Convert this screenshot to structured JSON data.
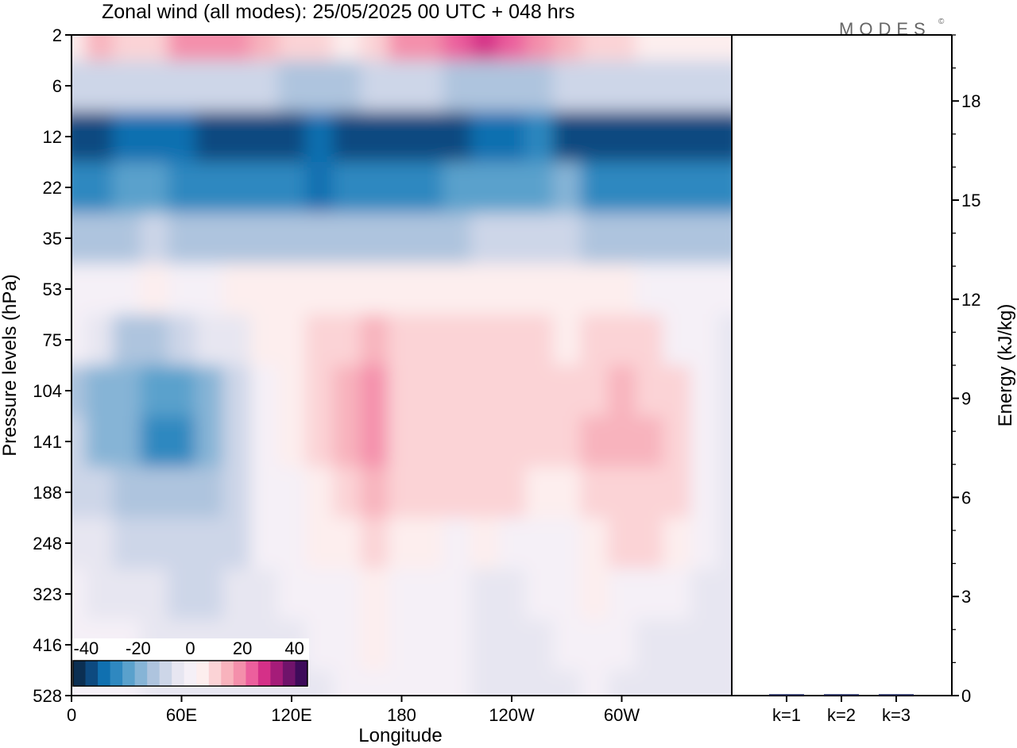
{
  "title": "Zonal wind (all modes):  25/05/2025  00 UTC  + 048 hrs",
  "logo": "MODES",
  "logo_mark": "©",
  "chart_data": [
    {
      "type": "heatmap",
      "title": "Zonal wind (all modes):  25/05/2025  00 UTC  + 048 hrs",
      "xlabel": "Longitude",
      "ylabel": "Pressure levels (hPa)",
      "x_tick_labels": [
        "0",
        "60E",
        "120E",
        "180",
        "120W",
        "60W"
      ],
      "x_tick_degrees": [
        0,
        60,
        120,
        180,
        240,
        300
      ],
      "xlim": [
        0,
        360
      ],
      "y_tick_labels": [
        "2",
        "6",
        "12",
        "22",
        "35",
        "53",
        "75",
        "104",
        "141",
        "188",
        "248",
        "323",
        "416",
        "528"
      ],
      "y_axis_note": "pressure levels spaced evenly, 2 hPa at top",
      "colorbar": {
        "tick_labels": [
          "-40",
          "-20",
          "0",
          "20",
          "40"
        ],
        "range": [
          -45,
          45
        ],
        "step": 5,
        "colors": [
          "#0b2f52",
          "#0d4a80",
          "#1070b0",
          "#2f88c0",
          "#5aa1cc",
          "#86b4d6",
          "#aec4de",
          "#cdd6e8",
          "#e7e6f1",
          "#f5f0f7",
          "#fdeeee",
          "#fbd3d6",
          "#f8b3bd",
          "#f48fab",
          "#ec5f9d",
          "#d53088",
          "#a51c79",
          "#70136b",
          "#3e0b5a"
        ]
      },
      "z_grid_note": "zonal wind in m/s, rows follow the pressure levels from 2 hPa down to 528 hPa, columns every 15 degrees from 0 to 360",
      "z": [
        [
          8,
          16,
          14,
          12,
          22,
          20,
          22,
          18,
          12,
          12,
          8,
          10,
          20,
          24,
          26,
          30,
          28,
          24,
          18,
          12,
          10,
          8,
          8,
          6,
          6
        ],
        [
          -6,
          -10,
          -10,
          -10,
          -8,
          -10,
          -10,
          -10,
          -12,
          -12,
          -12,
          -10,
          -10,
          -10,
          -12,
          -12,
          -12,
          -12,
          -10,
          -10,
          -8,
          -8,
          -8,
          -8,
          -6
        ],
        [
          -38,
          -36,
          -33,
          -31,
          -32,
          -37,
          -39,
          -38,
          -36,
          -35,
          -37,
          -39,
          -39,
          -38,
          -36,
          -35,
          -33,
          -30,
          -36,
          -38,
          -38,
          -37,
          -36,
          -37,
          -38
        ],
        [
          -28,
          -27,
          -24,
          -24,
          -26,
          -29,
          -30,
          -27,
          -30,
          -31,
          -30,
          -28,
          -27,
          -26,
          -25,
          -24,
          -25,
          -22,
          -20,
          -26,
          -28,
          -27,
          -26,
          -27,
          -28
        ],
        [
          -12,
          -13,
          -11,
          -10,
          -11,
          -12,
          -13,
          -14,
          -14,
          -13,
          -12,
          -12,
          -12,
          -11,
          -11,
          -10,
          -10,
          -9,
          -10,
          -12,
          -12,
          -11,
          -11,
          -11,
          -12
        ],
        [
          2,
          3,
          4,
          6,
          4,
          2,
          6,
          8,
          7,
          8,
          8,
          8,
          7,
          8,
          7,
          8,
          9,
          8,
          7,
          7,
          6,
          4,
          3,
          2,
          1
        ],
        [
          1,
          -4,
          -12,
          -12,
          -6,
          -4,
          -1,
          6,
          8,
          12,
          14,
          16,
          13,
          12,
          10,
          12,
          11,
          10,
          8,
          12,
          14,
          10,
          4,
          0,
          -2
        ],
        [
          -12,
          -18,
          -20,
          -25,
          -24,
          -20,
          -8,
          2,
          8,
          12,
          18,
          24,
          14,
          12,
          10,
          12,
          14,
          14,
          10,
          14,
          16,
          14,
          10,
          2,
          -4
        ],
        [
          -10,
          -16,
          -20,
          -30,
          -28,
          -20,
          -8,
          2,
          8,
          12,
          16,
          20,
          14,
          12,
          12,
          14,
          12,
          12,
          10,
          16,
          18,
          18,
          14,
          4,
          -2
        ],
        [
          -6,
          -10,
          -14,
          -14,
          -12,
          -12,
          -8,
          0,
          4,
          8,
          12,
          16,
          12,
          10,
          10,
          12,
          10,
          8,
          6,
          12,
          14,
          14,
          12,
          4,
          -2
        ],
        [
          -2,
          -4,
          -6,
          -8,
          -10,
          -10,
          -6,
          0,
          4,
          6,
          8,
          12,
          8,
          6,
          4,
          6,
          4,
          4,
          4,
          8,
          12,
          10,
          8,
          2,
          -2
        ],
        [
          0,
          -2,
          -2,
          -4,
          -6,
          -8,
          -4,
          -2,
          2,
          2,
          4,
          8,
          4,
          2,
          0,
          -2,
          -2,
          2,
          4,
          6,
          4,
          2,
          0,
          -2,
          -2
        ],
        [
          0,
          0,
          0,
          -2,
          -2,
          -2,
          -2,
          -4,
          -2,
          0,
          2,
          6,
          4,
          2,
          0,
          -2,
          -4,
          -2,
          2,
          2,
          0,
          -2,
          -4,
          -2,
          -2
        ],
        [
          0,
          0,
          0,
          -2,
          -2,
          -2,
          -2,
          -4,
          -4,
          -2,
          0,
          4,
          2,
          2,
          0,
          -2,
          -4,
          -4,
          -2,
          0,
          -2,
          -2,
          -4,
          -2,
          -2
        ]
      ]
    },
    {
      "type": "bar",
      "ylabel": "Energy (kJ/kg)",
      "categories": [
        "k=1",
        "k=2",
        "k=3"
      ],
      "values": [
        0.02,
        0.02,
        0.02
      ],
      "ylim": [
        0,
        20
      ],
      "y_tick_labels": [
        "0",
        "3",
        "6",
        "9",
        "12",
        "15",
        "18"
      ],
      "y_ticks": [
        0,
        3,
        6,
        9,
        12,
        15,
        18
      ]
    }
  ]
}
